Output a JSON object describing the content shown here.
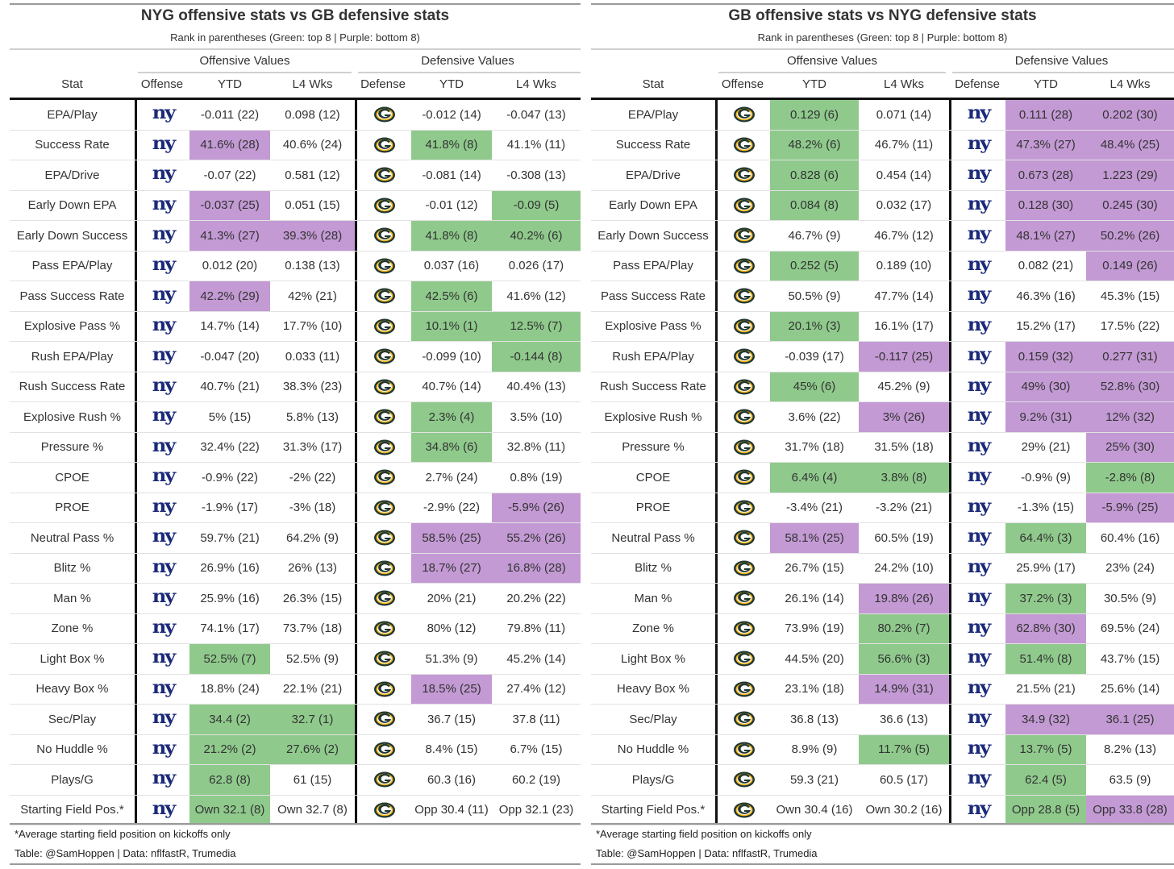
{
  "colors": {
    "green": "#8fca8c",
    "purple": "#c39ad4",
    "giants_blue": "#1c2a7a",
    "packers_green": "#203731",
    "packers_gold": "#ffb612"
  },
  "chart_data": [
    {
      "type": "table",
      "title": "NYG offensive stats vs GB defensive stats",
      "subtitle": "Rank in parentheses (Green: top 8 | Purple: bottom 8)",
      "spanners": [
        "Offensive Values",
        "Defensive Values"
      ],
      "columns": [
        "Stat",
        "Offense",
        "YTD",
        "L4 Wks",
        "Defense",
        "YTD",
        "L4 Wks"
      ],
      "offense_logo": "ny-giants-logo",
      "defense_logo": "gb-packers-logo",
      "footnote": "*Average starting field position on kickoffs only",
      "credit": "Table: @SamHoppen | Data: nflfastR, Trumedia",
      "rows": [
        {
          "stat": "EPA/Play",
          "cells": [
            [
              "-0.011 (22)",
              ""
            ],
            [
              "0.098 (12)",
              ""
            ],
            [
              "-0.012 (14)",
              ""
            ],
            [
              "-0.047 (13)",
              ""
            ]
          ]
        },
        {
          "stat": "Success Rate",
          "cells": [
            [
              "41.6% (28)",
              "p"
            ],
            [
              "40.6% (24)",
              ""
            ],
            [
              "41.8% (8)",
              "g"
            ],
            [
              "41.1% (11)",
              ""
            ]
          ]
        },
        {
          "stat": "EPA/Drive",
          "cells": [
            [
              "-0.07 (22)",
              ""
            ],
            [
              "0.581 (12)",
              ""
            ],
            [
              "-0.081 (14)",
              ""
            ],
            [
              "-0.308 (13)",
              ""
            ]
          ]
        },
        {
          "stat": "Early Down EPA",
          "cells": [
            [
              "-0.037 (25)",
              "p"
            ],
            [
              "0.051 (15)",
              ""
            ],
            [
              "-0.01 (12)",
              ""
            ],
            [
              "-0.09 (5)",
              "g"
            ]
          ]
        },
        {
          "stat": "Early Down Success",
          "cells": [
            [
              "41.3% (27)",
              "p"
            ],
            [
              "39.3% (28)",
              "p"
            ],
            [
              "41.8% (8)",
              "g"
            ],
            [
              "40.2% (6)",
              "g"
            ]
          ]
        },
        {
          "stat": "Pass EPA/Play",
          "cells": [
            [
              "0.012 (20)",
              ""
            ],
            [
              "0.138 (13)",
              ""
            ],
            [
              "0.037 (16)",
              ""
            ],
            [
              "0.026 (17)",
              ""
            ]
          ]
        },
        {
          "stat": "Pass Success Rate",
          "cells": [
            [
              "42.2% (29)",
              "p"
            ],
            [
              "42% (21)",
              ""
            ],
            [
              "42.5% (6)",
              "g"
            ],
            [
              "41.6% (12)",
              ""
            ]
          ]
        },
        {
          "stat": "Explosive Pass %",
          "cells": [
            [
              "14.7% (14)",
              ""
            ],
            [
              "17.7% (10)",
              ""
            ],
            [
              "10.1% (1)",
              "g"
            ],
            [
              "12.5% (7)",
              "g"
            ]
          ]
        },
        {
          "stat": "Rush EPA/Play",
          "cells": [
            [
              "-0.047 (20)",
              ""
            ],
            [
              "0.033 (11)",
              ""
            ],
            [
              "-0.099 (10)",
              ""
            ],
            [
              "-0.144 (8)",
              "g"
            ]
          ]
        },
        {
          "stat": "Rush Success Rate",
          "cells": [
            [
              "40.7% (21)",
              ""
            ],
            [
              "38.3% (23)",
              ""
            ],
            [
              "40.7% (14)",
              ""
            ],
            [
              "40.4% (13)",
              ""
            ]
          ]
        },
        {
          "stat": "Explosive Rush %",
          "cells": [
            [
              "5% (15)",
              ""
            ],
            [
              "5.8% (13)",
              ""
            ],
            [
              "2.3% (4)",
              "g"
            ],
            [
              "3.5% (10)",
              ""
            ]
          ]
        },
        {
          "stat": "Pressure %",
          "cells": [
            [
              "32.4% (22)",
              ""
            ],
            [
              "31.3% (17)",
              ""
            ],
            [
              "34.8% (6)",
              "g"
            ],
            [
              "32.8% (11)",
              ""
            ]
          ]
        },
        {
          "stat": "CPOE",
          "cells": [
            [
              "-0.9% (22)",
              ""
            ],
            [
              "-2% (22)",
              ""
            ],
            [
              "2.7% (24)",
              ""
            ],
            [
              "0.8% (19)",
              ""
            ]
          ]
        },
        {
          "stat": "PROE",
          "cells": [
            [
              "-1.9% (17)",
              ""
            ],
            [
              "-3% (18)",
              ""
            ],
            [
              "-2.9% (22)",
              ""
            ],
            [
              "-5.9% (26)",
              "p"
            ]
          ]
        },
        {
          "stat": "Neutral Pass %",
          "cells": [
            [
              "59.7% (21)",
              ""
            ],
            [
              "64.2% (9)",
              ""
            ],
            [
              "58.5% (25)",
              "p"
            ],
            [
              "55.2% (26)",
              "p"
            ]
          ]
        },
        {
          "stat": "Blitz %",
          "cells": [
            [
              "26.9% (16)",
              ""
            ],
            [
              "26% (13)",
              ""
            ],
            [
              "18.7% (27)",
              "p"
            ],
            [
              "16.8% (28)",
              "p"
            ]
          ]
        },
        {
          "stat": "Man %",
          "cells": [
            [
              "25.9% (16)",
              ""
            ],
            [
              "26.3% (15)",
              ""
            ],
            [
              "20% (21)",
              ""
            ],
            [
              "20.2% (22)",
              ""
            ]
          ]
        },
        {
          "stat": "Zone %",
          "cells": [
            [
              "74.1% (17)",
              ""
            ],
            [
              "73.7% (18)",
              ""
            ],
            [
              "80% (12)",
              ""
            ],
            [
              "79.8% (11)",
              ""
            ]
          ]
        },
        {
          "stat": "Light Box %",
          "cells": [
            [
              "52.5% (7)",
              "g"
            ],
            [
              "52.5% (9)",
              ""
            ],
            [
              "51.3% (9)",
              ""
            ],
            [
              "45.2% (14)",
              ""
            ]
          ]
        },
        {
          "stat": "Heavy Box %",
          "cells": [
            [
              "18.8% (24)",
              ""
            ],
            [
              "22.1% (21)",
              ""
            ],
            [
              "18.5% (25)",
              "p"
            ],
            [
              "27.4% (12)",
              ""
            ]
          ]
        },
        {
          "stat": "Sec/Play",
          "cells": [
            [
              "34.4 (2)",
              "g"
            ],
            [
              "32.7 (1)",
              "g"
            ],
            [
              "36.7 (15)",
              ""
            ],
            [
              "37.8 (11)",
              ""
            ]
          ]
        },
        {
          "stat": "No Huddle %",
          "cells": [
            [
              "21.2% (2)",
              "g"
            ],
            [
              "27.6% (2)",
              "g"
            ],
            [
              "8.4% (15)",
              ""
            ],
            [
              "6.7% (15)",
              ""
            ]
          ]
        },
        {
          "stat": "Plays/G",
          "cells": [
            [
              "62.8 (8)",
              "g"
            ],
            [
              "61 (15)",
              ""
            ],
            [
              "60.3 (16)",
              ""
            ],
            [
              "60.2 (19)",
              ""
            ]
          ]
        },
        {
          "stat": "Starting Field Pos.*",
          "cells": [
            [
              "Own 32.1 (8)",
              "g"
            ],
            [
              "Own 32.7 (8)",
              ""
            ],
            [
              "Opp 30.4 (11)",
              ""
            ],
            [
              "Opp 32.1 (23)",
              ""
            ]
          ]
        }
      ]
    },
    {
      "type": "table",
      "title": "GB offensive stats vs NYG defensive stats",
      "subtitle": "Rank in parentheses (Green: top 8 | Purple: bottom 8)",
      "spanners": [
        "Offensive Values",
        "Defensive Values"
      ],
      "columns": [
        "Stat",
        "Offense",
        "YTD",
        "L4 Wks",
        "Defense",
        "YTD",
        "L4 Wks"
      ],
      "offense_logo": "gb-packers-logo",
      "defense_logo": "ny-giants-logo",
      "footnote": "*Average starting field position on kickoffs only",
      "credit": "Table: @SamHoppen | Data: nflfastR, Trumedia",
      "rows": [
        {
          "stat": "EPA/Play",
          "cells": [
            [
              "0.129 (6)",
              "g"
            ],
            [
              "0.071 (14)",
              ""
            ],
            [
              "0.111 (28)",
              "p"
            ],
            [
              "0.202 (30)",
              "p"
            ]
          ]
        },
        {
          "stat": "Success Rate",
          "cells": [
            [
              "48.2% (6)",
              "g"
            ],
            [
              "46.7% (11)",
              ""
            ],
            [
              "47.3% (27)",
              "p"
            ],
            [
              "48.4% (25)",
              "p"
            ]
          ]
        },
        {
          "stat": "EPA/Drive",
          "cells": [
            [
              "0.828 (6)",
              "g"
            ],
            [
              "0.454 (14)",
              ""
            ],
            [
              "0.673 (28)",
              "p"
            ],
            [
              "1.223 (29)",
              "p"
            ]
          ]
        },
        {
          "stat": "Early Down EPA",
          "cells": [
            [
              "0.084 (8)",
              "g"
            ],
            [
              "0.032 (17)",
              ""
            ],
            [
              "0.128 (30)",
              "p"
            ],
            [
              "0.245 (30)",
              "p"
            ]
          ]
        },
        {
          "stat": "Early Down Success",
          "cells": [
            [
              "46.7% (9)",
              ""
            ],
            [
              "46.7% (12)",
              ""
            ],
            [
              "48.1% (27)",
              "p"
            ],
            [
              "50.2% (26)",
              "p"
            ]
          ]
        },
        {
          "stat": "Pass EPA/Play",
          "cells": [
            [
              "0.252 (5)",
              "g"
            ],
            [
              "0.189 (10)",
              ""
            ],
            [
              "0.082 (21)",
              ""
            ],
            [
              "0.149 (26)",
              "p"
            ]
          ]
        },
        {
          "stat": "Pass Success Rate",
          "cells": [
            [
              "50.5% (9)",
              ""
            ],
            [
              "47.7% (14)",
              ""
            ],
            [
              "46.3% (16)",
              ""
            ],
            [
              "45.3% (15)",
              ""
            ]
          ]
        },
        {
          "stat": "Explosive Pass %",
          "cells": [
            [
              "20.1% (3)",
              "g"
            ],
            [
              "16.1% (17)",
              ""
            ],
            [
              "15.2% (17)",
              ""
            ],
            [
              "17.5% (22)",
              ""
            ]
          ]
        },
        {
          "stat": "Rush EPA/Play",
          "cells": [
            [
              "-0.039 (17)",
              ""
            ],
            [
              "-0.117 (25)",
              "p"
            ],
            [
              "0.159 (32)",
              "p"
            ],
            [
              "0.277 (31)",
              "p"
            ]
          ]
        },
        {
          "stat": "Rush Success Rate",
          "cells": [
            [
              "45% (6)",
              "g"
            ],
            [
              "45.2% (9)",
              ""
            ],
            [
              "49% (30)",
              "p"
            ],
            [
              "52.8% (30)",
              "p"
            ]
          ]
        },
        {
          "stat": "Explosive Rush %",
          "cells": [
            [
              "3.6% (22)",
              ""
            ],
            [
              "3% (26)",
              "p"
            ],
            [
              "9.2% (31)",
              "p"
            ],
            [
              "12% (32)",
              "p"
            ]
          ]
        },
        {
          "stat": "Pressure %",
          "cells": [
            [
              "31.7% (18)",
              ""
            ],
            [
              "31.5% (18)",
              ""
            ],
            [
              "29% (21)",
              ""
            ],
            [
              "25% (30)",
              "p"
            ]
          ]
        },
        {
          "stat": "CPOE",
          "cells": [
            [
              "6.4% (4)",
              "g"
            ],
            [
              "3.8% (8)",
              "g"
            ],
            [
              "-0.9% (9)",
              ""
            ],
            [
              "-2.8% (8)",
              "g"
            ]
          ]
        },
        {
          "stat": "PROE",
          "cells": [
            [
              "-3.4% (21)",
              ""
            ],
            [
              "-3.2% (21)",
              ""
            ],
            [
              "-1.3% (15)",
              ""
            ],
            [
              "-5.9% (25)",
              "p"
            ]
          ]
        },
        {
          "stat": "Neutral Pass %",
          "cells": [
            [
              "58.1% (25)",
              "p"
            ],
            [
              "60.5% (19)",
              ""
            ],
            [
              "64.4% (3)",
              "g"
            ],
            [
              "60.4% (16)",
              ""
            ]
          ]
        },
        {
          "stat": "Blitz %",
          "cells": [
            [
              "26.7% (15)",
              ""
            ],
            [
              "24.2% (10)",
              ""
            ],
            [
              "25.9% (17)",
              ""
            ],
            [
              "23% (24)",
              ""
            ]
          ]
        },
        {
          "stat": "Man %",
          "cells": [
            [
              "26.1% (14)",
              ""
            ],
            [
              "19.8% (26)",
              "p"
            ],
            [
              "37.2% (3)",
              "g"
            ],
            [
              "30.5% (9)",
              ""
            ]
          ]
        },
        {
          "stat": "Zone %",
          "cells": [
            [
              "73.9% (19)",
              ""
            ],
            [
              "80.2% (7)",
              "g"
            ],
            [
              "62.8% (30)",
              "p"
            ],
            [
              "69.5% (24)",
              ""
            ]
          ]
        },
        {
          "stat": "Light Box %",
          "cells": [
            [
              "44.5% (20)",
              ""
            ],
            [
              "56.6% (3)",
              "g"
            ],
            [
              "51.4% (8)",
              "g"
            ],
            [
              "43.7% (15)",
              ""
            ]
          ]
        },
        {
          "stat": "Heavy Box %",
          "cells": [
            [
              "23.1% (18)",
              ""
            ],
            [
              "14.9% (31)",
              "p"
            ],
            [
              "21.5% (21)",
              ""
            ],
            [
              "25.6% (14)",
              ""
            ]
          ]
        },
        {
          "stat": "Sec/Play",
          "cells": [
            [
              "36.8 (13)",
              ""
            ],
            [
              "36.6 (13)",
              ""
            ],
            [
              "34.9 (32)",
              "p"
            ],
            [
              "36.1 (25)",
              "p"
            ]
          ]
        },
        {
          "stat": "No Huddle %",
          "cells": [
            [
              "8.9% (9)",
              ""
            ],
            [
              "11.7% (5)",
              "g"
            ],
            [
              "13.7% (5)",
              "g"
            ],
            [
              "8.2% (13)",
              ""
            ]
          ]
        },
        {
          "stat": "Plays/G",
          "cells": [
            [
              "59.3 (21)",
              ""
            ],
            [
              "60.5 (17)",
              ""
            ],
            [
              "62.4 (5)",
              "g"
            ],
            [
              "63.5 (9)",
              ""
            ]
          ]
        },
        {
          "stat": "Starting Field Pos.*",
          "cells": [
            [
              "Own 30.4 (16)",
              ""
            ],
            [
              "Own 30.2 (16)",
              ""
            ],
            [
              "Opp 28.8 (5)",
              "g"
            ],
            [
              "Opp 33.8 (28)",
              "p"
            ]
          ]
        }
      ]
    }
  ]
}
